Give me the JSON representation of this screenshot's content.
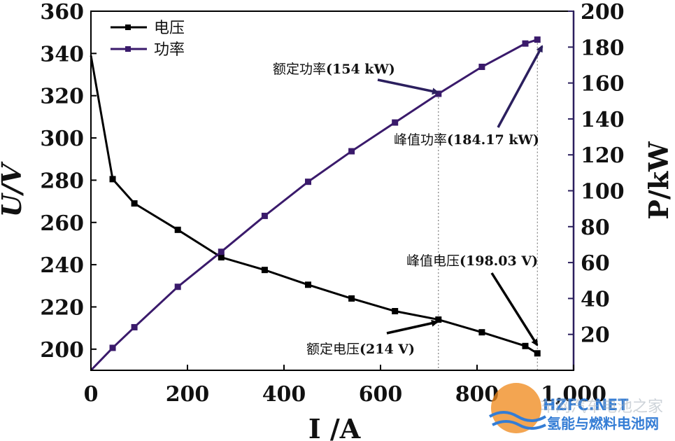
{
  "chart_data": {
    "type": "line",
    "title": "",
    "xlabel": "I /A",
    "ylabel_left": "U/V",
    "ylabel_right": "P/kW",
    "xlim": [
      0,
      1000
    ],
    "ylim_left": [
      190,
      360
    ],
    "ylim_right": [
      0,
      200
    ],
    "x_ticks": [
      0,
      200,
      400,
      600,
      800,
      1000
    ],
    "y_left_ticks": [
      200,
      220,
      240,
      260,
      280,
      300,
      320,
      340,
      360
    ],
    "y_right_ticks": [
      20,
      40,
      60,
      80,
      100,
      120,
      140,
      160,
      180,
      200
    ],
    "colors": {
      "voltage": "#000000",
      "power": "#3a1a6b",
      "axis": "#000000",
      "right_axis": "#2b1f5e"
    },
    "series": [
      {
        "name": "电压",
        "axis": "left",
        "color": "#000000",
        "x": [
          0,
          45,
          90,
          180,
          270,
          360,
          450,
          540,
          630,
          720,
          810,
          900,
          925
        ],
        "y": [
          339,
          280.5,
          269,
          256.5,
          243.5,
          237.5,
          230.5,
          224,
          218,
          214,
          208,
          201.5,
          198.03
        ],
        "markers": [
          false,
          true,
          true,
          true,
          true,
          true,
          true,
          true,
          true,
          true,
          true,
          true,
          true
        ]
      },
      {
        "name": "功率",
        "axis": "right",
        "color": "#3a1a6b",
        "x": [
          0,
          45,
          90,
          180,
          270,
          360,
          450,
          540,
          630,
          720,
          810,
          900,
          925
        ],
        "y": [
          0,
          12.5,
          24,
          46.5,
          66,
          86,
          105,
          122,
          138,
          154,
          169,
          182,
          184.17
        ],
        "markers": [
          false,
          true,
          true,
          true,
          true,
          true,
          true,
          true,
          true,
          true,
          true,
          true,
          true
        ]
      }
    ],
    "legend": {
      "position": "top-left",
      "entries": [
        {
          "label": "电压",
          "color": "#000000"
        },
        {
          "label": "功率",
          "color": "#3a1a6b"
        }
      ]
    },
    "annotations": [
      {
        "id": "rated-power",
        "prefix": "额定功率",
        "value": "(154 kW)",
        "target_x": 720,
        "target_value": 154,
        "target_axis": "right"
      },
      {
        "id": "peak-power",
        "prefix": "峰值功率",
        "value": "(184.17 kW)",
        "target_x": 925,
        "target_value": 184.17,
        "target_axis": "right"
      },
      {
        "id": "peak-voltage",
        "prefix": "峰值电压",
        "value": "(198.03 V)",
        "target_x": 925,
        "target_value": 198.03,
        "target_axis": "left"
      },
      {
        "id": "rated-voltage",
        "prefix": "额定电压",
        "value": "(214 V)",
        "target_x": 720,
        "target_value": 214,
        "target_axis": "left"
      }
    ],
    "reference_lines_x": [
      720,
      925
    ]
  },
  "watermark": {
    "top": "车网汽车电池之家",
    "bottom": "氢能与燃料电池网",
    "logo": "HZFC.NET"
  }
}
